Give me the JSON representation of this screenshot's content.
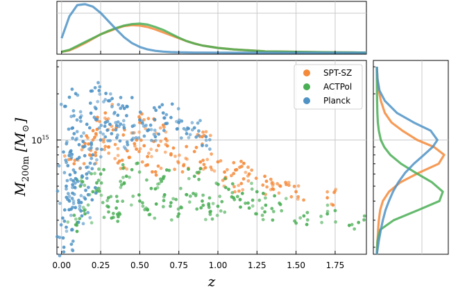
{
  "chart_data": {
    "type": "scatter",
    "xlabel": "z",
    "ylabel_main": "M",
    "ylabel_sub": "200m",
    "ylabel_unit": "[M",
    "ylabel_unit_sub": "⊙",
    "ylabel_close": "]",
    "x_ticks": [
      "0.00",
      "0.25",
      "0.50",
      "0.75",
      "1.00",
      "1.25",
      "1.50",
      "1.75"
    ],
    "x_tick_values": [
      0,
      0.25,
      0.5,
      0.75,
      1.0,
      1.25,
      1.5,
      1.75
    ],
    "xlim": [
      -0.03,
      1.95
    ],
    "y_scale": "log",
    "y_tick_label": "10",
    "y_tick_label_exp": "15",
    "ylim": [
      180000000000000.0,
      3300000000000000.0
    ],
    "grid": true,
    "legend_position": "top-right",
    "series": [
      {
        "name": "SPT-SZ",
        "color": "#f58a3a",
        "points": [
          [
            0.08,
            700000000000000.0
          ],
          [
            0.15,
            950000000000000.0
          ],
          [
            0.22,
            1100000000000000.0
          ],
          [
            0.3,
            900000000000000.0
          ],
          [
            0.35,
            1200000000000000.0
          ],
          [
            0.42,
            850000000000000.0
          ],
          [
            0.48,
            1000000000000000.0
          ],
          [
            0.55,
            780000000000000.0
          ],
          [
            0.62,
            920000000000000.0
          ],
          [
            0.7,
            800000000000000.0
          ],
          [
            0.78,
            680000000000000.0
          ],
          [
            0.85,
            840000000000000.0
          ],
          [
            0.92,
            660000000000000.0
          ],
          [
            1.0,
            720000000000000.0
          ],
          [
            1.05,
            560000000000000.0
          ],
          [
            1.12,
            640000000000000.0
          ],
          [
            1.2,
            600000000000000.0
          ],
          [
            1.3,
            580000000000000.0
          ],
          [
            1.4,
            500000000000000.0
          ],
          [
            1.5,
            460000000000000.0
          ],
          [
            1.7,
            420000000000000.0
          ],
          [
            0.28,
            1500000000000000.0
          ],
          [
            0.5,
            1300000000000000.0
          ],
          [
            0.65,
            1250000000000000.0
          ],
          [
            0.4,
            660000000000000.0
          ],
          [
            0.58,
            620000000000000.0
          ],
          [
            0.18,
            800000000000000.0
          ],
          [
            0.9,
            1050000000000000.0
          ],
          [
            1.15,
            520000000000000.0
          ],
          [
            1.35,
            480000000000000.0
          ]
        ]
      },
      {
        "name": "ACTPol",
        "color": "#4aae55",
        "points": [
          [
            0.12,
            500000000000000.0
          ],
          [
            0.2,
            460000000000000.0
          ],
          [
            0.3,
            420000000000000.0
          ],
          [
            0.4,
            520000000000000.0
          ],
          [
            0.5,
            400000000000000.0
          ],
          [
            0.6,
            480000000000000.0
          ],
          [
            0.7,
            390000000000000.0
          ],
          [
            0.8,
            440000000000000.0
          ],
          [
            0.9,
            400000000000000.0
          ],
          [
            1.0,
            370000000000000.0
          ],
          [
            1.1,
            420000000000000.0
          ],
          [
            1.2,
            360000000000000.0
          ],
          [
            1.3,
            340000000000000.0
          ],
          [
            1.4,
            380000000000000.0
          ],
          [
            1.55,
            320000000000000.0
          ],
          [
            1.7,
            330000000000000.0
          ],
          [
            1.9,
            290000000000000.0
          ],
          [
            0.25,
            600000000000000.0
          ],
          [
            0.45,
            640000000000000.0
          ],
          [
            0.65,
            560000000000000.0
          ],
          [
            0.15,
            330000000000000.0
          ],
          [
            0.35,
            360000000000000.0
          ],
          [
            0.55,
            350000000000000.0
          ],
          [
            0.75,
            330000000000000.0
          ],
          [
            0.95,
            340000000000000.0
          ],
          [
            0.85,
            580000000000000.0
          ],
          [
            1.05,
            490000000000000.0
          ],
          [
            1.25,
            460000000000000.0
          ],
          [
            0.1,
            290000000000000.0
          ],
          [
            0.32,
            310000000000000.0
          ]
        ]
      },
      {
        "name": "Planck",
        "color": "#4f93c5",
        "points": [
          [
            0.01,
            230000000000000.0
          ],
          [
            0.02,
            350000000000000.0
          ],
          [
            0.03,
            500000000000000.0
          ],
          [
            0.04,
            680000000000000.0
          ],
          [
            0.05,
            400000000000000.0
          ],
          [
            0.06,
            850000000000000.0
          ],
          [
            0.08,
            1100000000000000.0
          ],
          [
            0.1,
            750000000000000.0
          ],
          [
            0.12,
            1400000000000000.0
          ],
          [
            0.14,
            900000000000000.0
          ],
          [
            0.16,
            600000000000000.0
          ],
          [
            0.18,
            1200000000000000.0
          ],
          [
            0.2,
            800000000000000.0
          ],
          [
            0.22,
            1600000000000000.0
          ],
          [
            0.25,
            1000000000000000.0
          ],
          [
            0.28,
            1300000000000000.0
          ],
          [
            0.32,
            1100000000000000.0
          ],
          [
            0.36,
            1450000000000000.0
          ],
          [
            0.4,
            1200000000000000.0
          ],
          [
            0.45,
            1000000000000000.0
          ],
          [
            0.5,
            1350000000000000.0
          ],
          [
            0.55,
            1150000000000000.0
          ],
          [
            0.6,
            1050000000000000.0
          ],
          [
            0.7,
            1400000000000000.0
          ],
          [
            0.8,
            1100000000000000.0
          ],
          [
            0.9,
            920000000000000.0
          ],
          [
            0.015,
            200000000000000.0
          ],
          [
            0.03,
            270000000000000.0
          ],
          [
            0.07,
            450000000000000.0
          ],
          [
            0.09,
            560000000000000.0
          ],
          [
            0.11,
            390000000000000.0
          ],
          [
            0.13,
            320000000000000.0
          ],
          [
            0.17,
            440000000000000.0
          ],
          [
            0.24,
            2100000000000000.0
          ],
          [
            0.3,
            1800000000000000.0
          ],
          [
            0.42,
            1650000000000000.0
          ],
          [
            0.65,
            1500000000000000.0
          ],
          [
            0.75,
            1300000000000000.0
          ],
          [
            0.85,
            1200000000000000.0
          ],
          [
            0.05,
            1900000000000000.0
          ]
        ]
      }
    ],
    "top_panel": {
      "x": [
        0,
        0.05,
        0.1,
        0.15,
        0.2,
        0.25,
        0.3,
        0.35,
        0.4,
        0.45,
        0.5,
        0.55,
        0.6,
        0.65,
        0.7,
        0.75,
        0.8,
        0.85,
        0.9,
        1.0,
        1.1,
        1.2,
        1.3,
        1.5,
        1.75,
        1.95
      ],
      "curves": [
        {
          "name": "SPT-SZ",
          "color": "#f58a3a",
          "y": [
            0.02,
            0.05,
            0.12,
            0.2,
            0.29,
            0.38,
            0.44,
            0.5,
            0.55,
            0.57,
            0.56,
            0.53,
            0.48,
            0.42,
            0.36,
            0.3,
            0.24,
            0.19,
            0.15,
            0.1,
            0.07,
            0.05,
            0.03,
            0.02,
            0.01,
            0.005
          ]
        },
        {
          "name": "ACTPol",
          "color": "#4aae55",
          "y": [
            0.02,
            0.06,
            0.14,
            0.22,
            0.3,
            0.38,
            0.45,
            0.51,
            0.56,
            0.59,
            0.6,
            0.58,
            0.53,
            0.47,
            0.39,
            0.31,
            0.24,
            0.19,
            0.15,
            0.1,
            0.07,
            0.05,
            0.03,
            0.02,
            0.01,
            0.005
          ]
        },
        {
          "name": "Planck",
          "color": "#4f93c5",
          "y": [
            0.3,
            0.75,
            0.98,
            1.0,
            0.95,
            0.82,
            0.65,
            0.48,
            0.32,
            0.2,
            0.12,
            0.07,
            0.04,
            0.025,
            0.015,
            0.01,
            0.007,
            0.005,
            0.004,
            0.003,
            0.002,
            0.002,
            0.001,
            0.001,
            0.001,
            0.001
          ]
        }
      ]
    },
    "right_panel": {
      "mass": [
        180000000000000.0,
        220000000000000.0,
        260000000000000.0,
        300000000000000.0,
        350000000000000.0,
        400000000000000.0,
        460000000000000.0,
        530000000000000.0,
        610000000000000.0,
        700000000000000.0,
        800000000000000.0,
        900000000000000.0,
        1000000000000000.0,
        1150000000000000.0,
        1300000000000000.0,
        1500000000000000.0,
        1800000000000000.0,
        2100000000000000.0,
        2500000000000000.0,
        3000000000000000.0
      ],
      "curves": [
        {
          "name": "SPT-SZ",
          "color": "#f58a3a",
          "y": [
            0.0,
            0.01,
            0.02,
            0.03,
            0.05,
            0.09,
            0.18,
            0.35,
            0.62,
            0.92,
            1.0,
            0.85,
            0.6,
            0.38,
            0.22,
            0.12,
            0.06,
            0.03,
            0.01,
            0.0
          ]
        },
        {
          "name": "ACTPol",
          "color": "#4aae55",
          "y": [
            0.0,
            0.01,
            0.05,
            0.25,
            0.62,
            0.93,
            0.98,
            0.82,
            0.58,
            0.36,
            0.2,
            0.11,
            0.06,
            0.03,
            0.015,
            0.008,
            0.004,
            0.002,
            0.001,
            0.0
          ]
        },
        {
          "name": "Planck",
          "color": "#4f93c5",
          "y": [
            0.0,
            0.03,
            0.06,
            0.09,
            0.13,
            0.18,
            0.24,
            0.32,
            0.42,
            0.55,
            0.7,
            0.83,
            0.9,
            0.8,
            0.55,
            0.3,
            0.12,
            0.04,
            0.01,
            0.0
          ]
        }
      ]
    }
  }
}
